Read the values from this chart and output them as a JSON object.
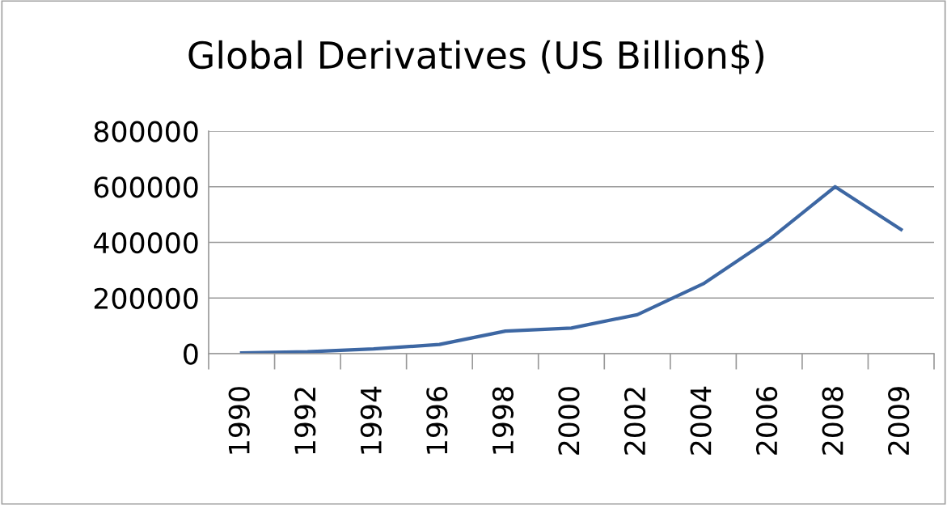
{
  "chart_data": {
    "type": "line",
    "title": "Global Derivatives (US Billion$)",
    "categories": [
      "1990",
      "1992",
      "1994",
      "1996",
      "1998",
      "2000",
      "2002",
      "2004",
      "2006",
      "2008",
      "2009"
    ],
    "series": [
      {
        "color": "#3d67a3",
        "values": [
          3000,
          7000,
          17000,
          33000,
          81000,
          92000,
          140000,
          251000,
          410000,
          600000,
          446000
        ]
      }
    ],
    "ylim": [
      0,
      800000
    ],
    "yticks": [
      0,
      200000,
      400000,
      600000,
      800000
    ],
    "grid": "y",
    "legend": false,
    "marker": "none",
    "line_style": "solid"
  }
}
